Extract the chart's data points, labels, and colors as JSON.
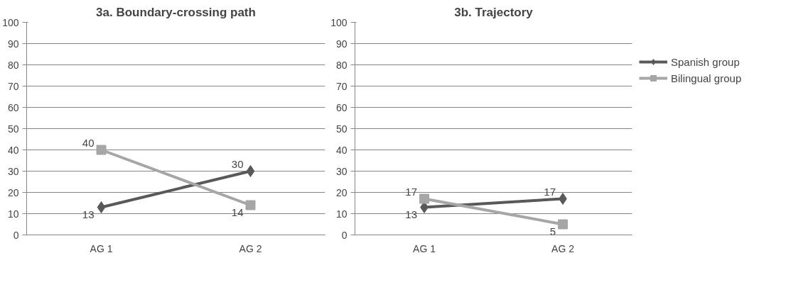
{
  "chart_data": [
    {
      "type": "line",
      "title": "3a. Boundary-crossing path",
      "categories": [
        "AG 1",
        "AG 2"
      ],
      "ylim": [
        0,
        100
      ],
      "yticks": [
        0,
        10,
        20,
        30,
        40,
        50,
        60,
        70,
        80,
        90,
        100
      ],
      "grid": "y",
      "data_labels": true,
      "legend": false,
      "series": [
        {
          "color": "#595959",
          "values": [
            13,
            30
          ],
          "marker": "diamond"
        },
        {
          "color": "#a6a6a6",
          "values": [
            40,
            14
          ],
          "marker": "square"
        }
      ]
    },
    {
      "type": "line",
      "title": "3b. Trajectory",
      "categories": [
        "AG 1",
        "AG 2"
      ],
      "ylim": [
        0,
        100
      ],
      "yticks": [
        0,
        10,
        20,
        30,
        40,
        50,
        60,
        70,
        80,
        90,
        100
      ],
      "grid": "y",
      "data_labels": true,
      "legend": "right",
      "series": [
        {
          "name": "Spanish group",
          "color": "#595959",
          "values": [
            13,
            17
          ],
          "marker": "diamond"
        },
        {
          "name": "Bilingual group",
          "color": "#a6a6a6",
          "values": [
            17,
            5
          ],
          "marker": "square"
        }
      ]
    }
  ]
}
